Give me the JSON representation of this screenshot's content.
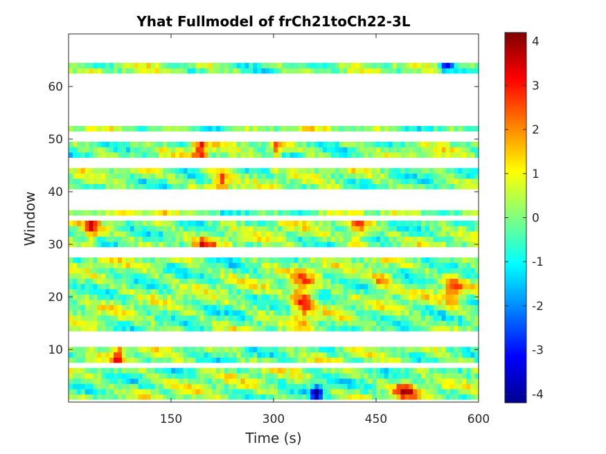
{
  "chart_data": {
    "type": "heatmap",
    "title": "Yhat Fullmodel of frCh21toCh22-3L",
    "xlabel": "Time (s)",
    "ylabel": "Window",
    "xlim": [
      0,
      600
    ],
    "ylim": [
      0,
      70
    ],
    "xticks": [
      150,
      300,
      450,
      600
    ],
    "yticks": [
      10,
      20,
      30,
      40,
      50,
      60
    ],
    "colormap": "jet",
    "clim": [
      -4.2,
      4.2
    ],
    "colorbar_ticks": [
      -4,
      -3,
      -2,
      -1,
      0,
      1,
      2,
      3,
      4
    ],
    "colorbar_location": "right",
    "n_columns": 100,
    "rows_with_data": [
      1,
      2,
      3,
      4,
      5,
      6,
      8,
      9,
      10,
      14,
      15,
      16,
      17,
      18,
      19,
      20,
      21,
      22,
      23,
      24,
      25,
      26,
      27,
      30,
      31,
      32,
      33,
      34,
      36,
      41,
      42,
      43,
      44,
      47,
      48,
      49,
      52,
      63,
      64
    ],
    "empty_rows": [
      7,
      11,
      12,
      13,
      28,
      29,
      35,
      37,
      38,
      39,
      40,
      45,
      46,
      50,
      51,
      53,
      54,
      55,
      56,
      57,
      58,
      59,
      60,
      61,
      62,
      65,
      66,
      67,
      68,
      69,
      70
    ],
    "approx_cell_values": "continuous field, mostly between -1.5 and 1.5; hot spots near 3-4 around t=300-360s windows 18-24 and t=480-500s window 2; cold spot near -4 around t=360s window 2 and t=550s window 64",
    "grid": false
  },
  "colors": {
    "background": "#ffffff",
    "axis": "#262626",
    "empty_band": "#ffffff"
  }
}
